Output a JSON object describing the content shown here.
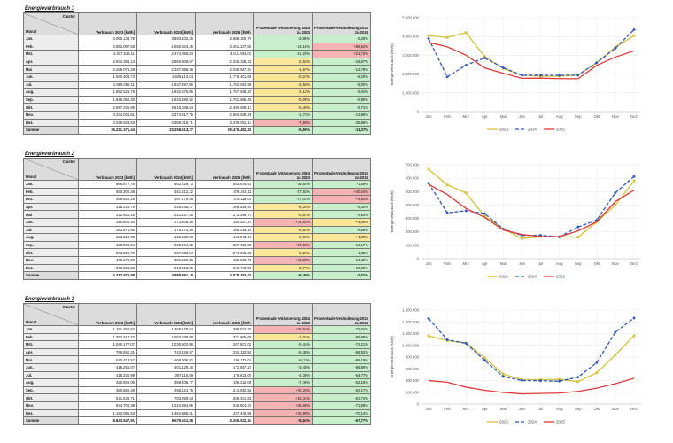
{
  "tables": [
    {
      "title": "Energieverbrauch 1",
      "header": {
        "corner_top": "Cluster",
        "corner_bottom": "Monat",
        "cols": [
          "Verbrauch 2023 [kWh]",
          "Verbrauch 2024 [kWh]",
          "Verbrauch 2025 [kWh]",
          "Prozentuale Veränderung 2024 zu 2023",
          "Prozentuale Veränderung 2025 zu 2024"
        ]
      },
      "rows": [
        {
          "m": "Jan.",
          "v": [
            "4.050.138,79",
            "3.893.102,25",
            "3.688.300,79",
            "-3,88%",
            "-5,26%"
          ],
          "c": [
            "green",
            "green"
          ]
        },
        {
          "m": "Feb.",
          "v": [
            "3.952.097,58",
            "1.850.334,45",
            "3.451.237,82",
            "-53,18%",
            "+86,52%"
          ],
          "c": [
            "green",
            "red"
          ]
        },
        {
          "m": "Mrz.",
          "v": [
            "4.207.548,11",
            "2.474.055,84",
            "3.011.554,03",
            "-41,20%",
            "+21,72%"
          ],
          "c": [
            "green",
            "red"
          ]
        },
        {
          "m": "Apr.",
          "v": [
            "2.934.384,13",
            "2.860.308,67",
            "2.326.328,42",
            "-2,52%",
            "-18,67%"
          ],
          "c": [
            "yellow",
            "green"
          ]
        },
        {
          "m": "Mai",
          "v": [
            "2.299.075,28",
            "2.337.398,36",
            "2.038.567,34",
            "+1,67%",
            "-12,78%"
          ],
          "c": [
            "yellow",
            "green"
          ]
        },
        {
          "m": "Jun.",
          "v": [
            "1.940.408,73",
            "1.935.113,54",
            "1.776.401,66",
            "-0,27%",
            "-8,20%"
          ],
          "c": [
            "yellow",
            "green"
          ]
        },
        {
          "m": "Jul.",
          "v": [
            "1.889.055,11",
            "1.937.497,86",
            "1.782.554,98",
            "+2,56%",
            "-8,00%"
          ],
          "c": [
            "yellow",
            "green"
          ]
        },
        {
          "m": "Aug.",
          "v": [
            "1.892.526,79",
            "1.932.576,06",
            "1.757.938,20",
            "+2,12%",
            "-9,04%"
          ],
          "c": [
            "yellow",
            "green"
          ]
        },
        {
          "m": "Sep.",
          "v": [
            "1.945.054,30",
            "1.943.290,92",
            "1.751.866,48",
            "-0,09%",
            "-9,85%"
          ],
          "c": [
            "yellow",
            "green"
          ]
        },
        {
          "m": "Okt.",
          "v": [
            "2.597.235,95",
            "2.610.036,64",
            "2.460.939,17",
            "+0,49%",
            "-5,71%"
          ],
          "c": [
            "yellow",
            "green"
          ]
        },
        {
          "m": "Nov.",
          "v": [
            "3.434.025,61",
            "3.374.817,75",
            "2.903.538,45",
            "-1,72%",
            "-13,96%"
          ],
          "c": [
            "green",
            "green"
          ]
        },
        {
          "m": "Dez.",
          "v": [
            "4.049.843,63",
            "4.369.016,71",
            "3.239.091,14",
            "+7,88%",
            "-25,86%"
          ],
          "c": [
            "red",
            "green"
          ]
        }
      ],
      "sum": {
        "m": "Summe",
        "v": [
          "35.221.371,44",
          "33.258.613,27",
          "29.475.492,29",
          "-5,55%",
          "-11,37%"
        ],
        "c": [
          "green",
          "green"
        ]
      }
    },
    {
      "title": "Energieverbrauch 2",
      "header": {
        "corner_top": "Cluster",
        "corner_bottom": "Monat",
        "cols": [
          "Verbrauch 2023 [kWh]",
          "Verbrauch 2024 [kWh]",
          "Verbrauch 2025 [kWh]",
          "Prozentuale Veränderung 2024 zu 2023",
          "Prozentuale Veränderung 2025 zu 2024"
        ]
      },
      "rows": [
        {
          "m": "Jan.",
          "v": [
            "666.877,76",
            "562.829,73",
            "553.875,57",
            "-15,60%",
            "-1,59%"
          ],
          "c": [
            "green",
            "green"
          ]
        },
        {
          "m": "Feb.",
          "v": [
            "550.302,38",
            "341.612,22",
            "478.403,11",
            "-37,92%",
            "+40,04%"
          ],
          "c": [
            "green",
            "red"
          ]
        },
        {
          "m": "Mrz.",
          "v": [
            "489.920,19",
            "357.479,46",
            "375.118,03",
            "-27,03%",
            "+4,93%"
          ],
          "c": [
            "green",
            "red"
          ]
        },
        {
          "m": "Apr.",
          "v": [
            "316.225,79",
            "336.438,27",
            "308.519,93",
            "+6,39%",
            "-8,30%"
          ],
          "c": [
            "yellow",
            "green"
          ]
        },
        {
          "m": "Mai",
          "v": [
            "222.920,15",
            "221.427,38",
            "213.359,77",
            "-0,67%",
            "-3,64%"
          ],
          "c": [
            "yellow",
            "green"
          ]
        },
        {
          "m": "Jun.",
          "v": [
            "150.800,30",
            "173.306,36",
            "180.327,27",
            "+14,92%",
            "+4,05%"
          ],
          "c": [
            "red",
            "yellow"
          ]
        },
        {
          "m": "Jul.",
          "v": [
            "163.975,95",
            "175.174,36",
            "165.228,16",
            "+6,83%",
            "-5,68%"
          ],
          "c": [
            "yellow",
            "green"
          ]
        },
        {
          "m": "Aug.",
          "v": [
            "163.312,95",
            "162.322,06",
            "164.573,18",
            "-0,61%",
            "+1,39%"
          ],
          "c": [
            "yellow",
            "yellow"
          ]
        },
        {
          "m": "Sep.",
          "v": [
            "160.590,24",
            "236.194,95",
            "207.460,38",
            "+47,08%",
            "-12,17%"
          ],
          "c": [
            "red",
            "green"
          ]
        },
        {
          "m": "Okt.",
          "v": [
            "273.306,79",
            "287.533,54",
            "274.936,33",
            "+5,21%",
            "-4,38%"
          ],
          "c": [
            "yellow",
            "green"
          ]
        },
        {
          "m": "Nov.",
          "v": [
            "400.176,90",
            "491.629,89",
            "425.658,76",
            "+22,85%",
            "-13,42%"
          ],
          "c": [
            "red",
            "green"
          ]
        },
        {
          "m": "Dez.",
          "v": [
            "579.556,86",
            "613.023,05",
            "510.749,56",
            "+5,77%",
            "-16,68%"
          ],
          "c": [
            "yellow",
            "green"
          ]
        }
      ],
      "sum": {
        "m": "Summe",
        "v": [
          "4.417.976,08",
          "3.998.891,19",
          "3.878.483,47",
          "-9,49%",
          "-3,01%"
        ],
        "c": [
          "green",
          "green"
        ]
      }
    },
    {
      "title": "Energieverbrauch 3",
      "header": {
        "corner_top": "Cluster",
        "corner_bottom": "Monat",
        "cols": [
          "Verbrauch 2023 [kWh]",
          "Verbrauch 2024 [kWh]",
          "Verbrauch 2025 [kWh]",
          "Prozentuale Veränderung 2024 zu 2023",
          "Prozentuale Veränderung 2025 zu 2024"
        ]
      },
      "rows": [
        {
          "m": "Jan.",
          "v": [
            "1.161.550,62",
            "1.458.178,54",
            "399.032,37",
            "+25,54%",
            "-72,64%"
          ],
          "c": [
            "red",
            "green"
          ]
        },
        {
          "m": "Feb.",
          "v": [
            "1.082.617,22",
            "1.093.538,88",
            "371.905,69",
            "+1,01%",
            "-65,99%"
          ],
          "c": [
            "yellow",
            "green"
          ]
        },
        {
          "m": "Mrz.",
          "v": [
            "1.040.177,07",
            "1.035.602,88",
            "287.801,02",
            "-0,44%",
            "-72,21%"
          ],
          "c": [
            "green",
            "green"
          ]
        },
        {
          "m": "Apr.",
          "v": [
            "786.950,31",
            "743.826,87",
            "234.152,50",
            "-5,48%",
            "-68,52%"
          ],
          "c": [
            "green",
            "green"
          ]
        },
        {
          "m": "Mai",
          "v": [
            "510.413,52",
            "469.006,92",
            "196.112,04",
            "-8,11%",
            "-58,19%"
          ],
          "c": [
            "green",
            "green"
          ]
        },
        {
          "m": "Jun.",
          "v": [
            "415.255,07",
            "401.129,46",
            "172.867,27",
            "-3,40%",
            "-56,90%"
          ],
          "c": [
            "green",
            "green"
          ]
        },
        {
          "m": "Jul.",
          "v": [
            "415.336,99",
            "397.116,59",
            "179.633,00",
            "-4,39%",
            "-54,77%"
          ],
          "c": [
            "green",
            "green"
          ]
        },
        {
          "m": "Aug.",
          "v": [
            "420.809,05",
            "389.406,77",
            "186.222,08",
            "-7,46%",
            "-52,18%"
          ],
          "c": [
            "green",
            "green"
          ]
        },
        {
          "m": "Sep.",
          "v": [
            "380.860,46",
            "458.121,75",
            "214.552,58",
            "+20,29%",
            "-53,17%"
          ],
          "c": [
            "red",
            "green"
          ]
        },
        {
          "m": "Okt.",
          "v": [
            "531.633,71",
            "703.959,63",
            "269.331,61",
            "+32,41%",
            "-61,74%"
          ],
          "c": [
            "red",
            "green"
          ]
        },
        {
          "m": "Nov.",
          "v": [
            "834.702,38",
            "1.224.394,05",
            "346.804,37",
            "+46,69%",
            "-71,68%"
          ],
          "c": [
            "red",
            "green"
          ]
        },
        {
          "m": "Dez.",
          "v": [
            "1.163.085,53",
            "1.464.885,51",
            "437.449,96",
            "+25,95%",
            "-70,14%"
          ],
          "c": [
            "red",
            "green"
          ]
        }
      ],
      "sum": {
        "m": "Summe",
        "v": [
          "8.843.547,91",
          "9.675.411,58",
          "3.265.532,34",
          "+8,64%",
          "-67,77%"
        ],
        "c": [
          "red",
          "green"
        ]
      }
    }
  ],
  "colors": {
    "s2023": "#d4c23a",
    "s2024": "#2f56b8",
    "s2025": "#dd3b3b",
    "green": "#c7efcb",
    "yellow": "#fbe79a",
    "red": "#f6b3b3"
  },
  "chart_data": [
    {
      "type": "line",
      "categories": [
        "Jan",
        "Feb",
        "Mrz",
        "Apr",
        "Mai",
        "Jun",
        "Jul",
        "Aug",
        "Sep",
        "Okt",
        "Nov",
        "Dez"
      ],
      "ylabel": "Energieverbrauch [kWh]",
      "ylim": [
        0,
        5000000
      ],
      "yticks": [
        "0",
        "1.000.000",
        "2.000.000",
        "3.000.000",
        "4.000.000",
        "5.000.000"
      ],
      "series": [
        {
          "name": "2023",
          "values": [
            4050139,
            3952098,
            4207548,
            2934384,
            2299075,
            1940409,
            1889055,
            1892527,
            1945054,
            2597236,
            3434026,
            4049844
          ]
        },
        {
          "name": "2024",
          "values": [
            3893102,
            1850334,
            2474056,
            2860309,
            2337398,
            1935114,
            1937498,
            1932576,
            1943291,
            2610037,
            3374818,
            4369017
          ]
        },
        {
          "name": "2025",
          "values": [
            3688301,
            3451237,
            3011554,
            2326328,
            2038567,
            1776402,
            1782555,
            1757938,
            1751866,
            2460939,
            2903538,
            3239091
          ]
        }
      ]
    },
    {
      "type": "line",
      "categories": [
        "Jan",
        "Feb",
        "Mrz",
        "Apr",
        "Mai",
        "Jun",
        "Jul",
        "Aug",
        "Sep",
        "Okt",
        "Nov",
        "Dez"
      ],
      "ylabel": "Energieverbrauch [kWh]",
      "ylim": [
        0,
        700000
      ],
      "yticks": [
        "0",
        "100.000",
        "200.000",
        "300.000",
        "400.000",
        "500.000",
        "600.000",
        "700.000"
      ],
      "series": [
        {
          "name": "2023",
          "values": [
            666878,
            550302,
            489920,
            316226,
            222920,
            150800,
            163976,
            163313,
            160590,
            273307,
            400177,
            579557
          ]
        },
        {
          "name": "2024",
          "values": [
            562830,
            341612,
            357479,
            336438,
            221427,
            173306,
            175174,
            162322,
            236195,
            287534,
            491630,
            613023
          ]
        },
        {
          "name": "2025",
          "values": [
            553876,
            478403,
            375118,
            308520,
            213360,
            180327,
            165228,
            164573,
            207460,
            274936,
            425659,
            510750
          ]
        }
      ]
    },
    {
      "type": "line",
      "categories": [
        "Jan",
        "Feb",
        "Mrz",
        "Apr",
        "Mai",
        "Jun",
        "Jul",
        "Aug",
        "Sep",
        "Okt",
        "Nov",
        "Dez"
      ],
      "ylabel": "Energieverbrauch [kWh]",
      "ylim": [
        0,
        1600000
      ],
      "yticks": [
        "0",
        "200.000",
        "400.000",
        "600.000",
        "800.000",
        "1.000.000",
        "1.200.000",
        "1.400.000",
        "1.600.000"
      ],
      "series": [
        {
          "name": "2023",
          "values": [
            1161551,
            1082617,
            1040177,
            786950,
            510414,
            415255,
            415337,
            420809,
            380860,
            531634,
            834702,
            1163086
          ]
        },
        {
          "name": "2024",
          "values": [
            1458179,
            1093539,
            1035603,
            743827,
            469007,
            401129,
            397117,
            389407,
            458122,
            703960,
            1224394,
            1464886
          ]
        },
        {
          "name": "2025",
          "values": [
            399032,
            371906,
            287801,
            234153,
            196112,
            172867,
            179633,
            186222,
            214553,
            269332,
            346804,
            437450
          ]
        }
      ]
    }
  ]
}
